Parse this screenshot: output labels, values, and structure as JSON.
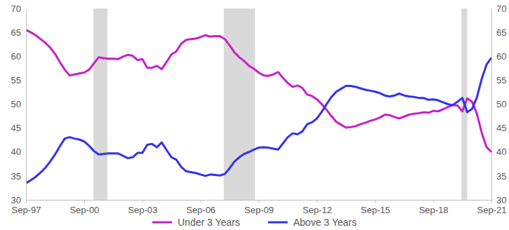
{
  "chart_data": {
    "type": "line",
    "categories": [
      "Sep-97",
      null,
      null,
      null,
      null,
      null,
      null,
      null,
      null,
      null,
      null,
      null,
      "Sep-00",
      null,
      null,
      null,
      null,
      null,
      null,
      null,
      null,
      null,
      null,
      null,
      "Sep-03",
      null,
      null,
      null,
      null,
      null,
      null,
      null,
      null,
      null,
      null,
      null,
      "Sep-06",
      null,
      null,
      null,
      null,
      null,
      null,
      null,
      null,
      null,
      null,
      null,
      "Sep-09",
      null,
      null,
      null,
      null,
      null,
      null,
      null,
      null,
      null,
      null,
      null,
      "Sep-12",
      null,
      null,
      null,
      null,
      null,
      null,
      null,
      null,
      null,
      null,
      null,
      "Sep-15",
      null,
      null,
      null,
      null,
      null,
      null,
      null,
      null,
      null,
      null,
      null,
      "Sep-18",
      null,
      null,
      null,
      null,
      null,
      null,
      null,
      null,
      null,
      null,
      null,
      "Sep-21"
    ],
    "series": [
      {
        "name": "Under 3 Years",
        "color": "#c820c8",
        "values": [
          65.5,
          65.0,
          64.4,
          63.6,
          62.8,
          61.8,
          60.5,
          58.8,
          57.2,
          56.0,
          56.2,
          56.4,
          56.6,
          57.2,
          58.5,
          59.8,
          59.6,
          59.5,
          59.5,
          59.4,
          59.9,
          60.3,
          60.1,
          59.2,
          59.4,
          57.6,
          57.6,
          58.0,
          57.3,
          58.8,
          60.4,
          61.0,
          62.6,
          63.4,
          63.6,
          63.7,
          64.0,
          64.4,
          64.1,
          64.2,
          64.2,
          63.6,
          62.3,
          60.8,
          59.8,
          59.0,
          58.0,
          57.4,
          56.6,
          56.0,
          55.9,
          56.2,
          56.7,
          55.5,
          54.4,
          53.6,
          53.9,
          53.4,
          52.0,
          51.7,
          51.0,
          50.0,
          48.8,
          47.5,
          46.3,
          45.7,
          45.1,
          45.2,
          45.4,
          45.8,
          46.1,
          46.5,
          46.8,
          47.2,
          47.8,
          47.7,
          47.3,
          47.0,
          47.4,
          47.8,
          48.0,
          48.1,
          48.3,
          48.2,
          48.6,
          48.5,
          48.9,
          49.4,
          49.8,
          49.7,
          48.5,
          51.2,
          50.5,
          48.0,
          44.0,
          41.0,
          40.0
        ]
      },
      {
        "name": "Above 3 Years",
        "color": "#3232f0",
        "values": [
          33.5,
          34.1,
          34.8,
          35.7,
          36.7,
          38.0,
          39.5,
          41.2,
          42.8,
          43.1,
          42.8,
          42.6,
          42.2,
          41.3,
          40.2,
          39.5,
          39.6,
          39.7,
          39.7,
          39.7,
          39.2,
          38.7,
          38.9,
          39.8,
          39.8,
          41.5,
          41.7,
          41.0,
          42.0,
          40.4,
          38.9,
          38.4,
          36.9,
          36.0,
          35.8,
          35.6,
          35.3,
          35.0,
          35.3,
          35.2,
          35.1,
          35.4,
          36.6,
          38.0,
          38.9,
          39.6,
          40.0,
          40.5,
          40.9,
          41.0,
          40.9,
          40.7,
          40.5,
          41.8,
          43.1,
          43.9,
          43.7,
          44.3,
          45.8,
          46.2,
          47.0,
          48.4,
          50.0,
          51.5,
          52.6,
          53.2,
          53.8,
          53.8,
          53.6,
          53.3,
          53.0,
          52.8,
          52.6,
          52.3,
          51.8,
          51.6,
          51.8,
          52.2,
          51.8,
          51.6,
          51.5,
          51.3,
          51.3,
          50.9,
          51.0,
          50.8,
          50.4,
          50.0,
          49.8,
          50.5,
          51.3,
          48.3,
          49.0,
          51.4,
          55.3,
          58.3,
          59.7
        ]
      }
    ],
    "recessions": [
      [
        13.9,
        16.8
      ],
      [
        40.8,
        47.2
      ],
      [
        89.8,
        91.0
      ]
    ],
    "ylim": [
      30,
      70
    ],
    "yticks": [
      30,
      35,
      40,
      45,
      50,
      55,
      60,
      65,
      70
    ],
    "y2lim": [
      30,
      70
    ],
    "y2ticks": [
      30,
      35,
      40,
      45,
      50,
      55,
      60,
      65,
      70
    ],
    "grid": false,
    "legend": "bottom"
  }
}
